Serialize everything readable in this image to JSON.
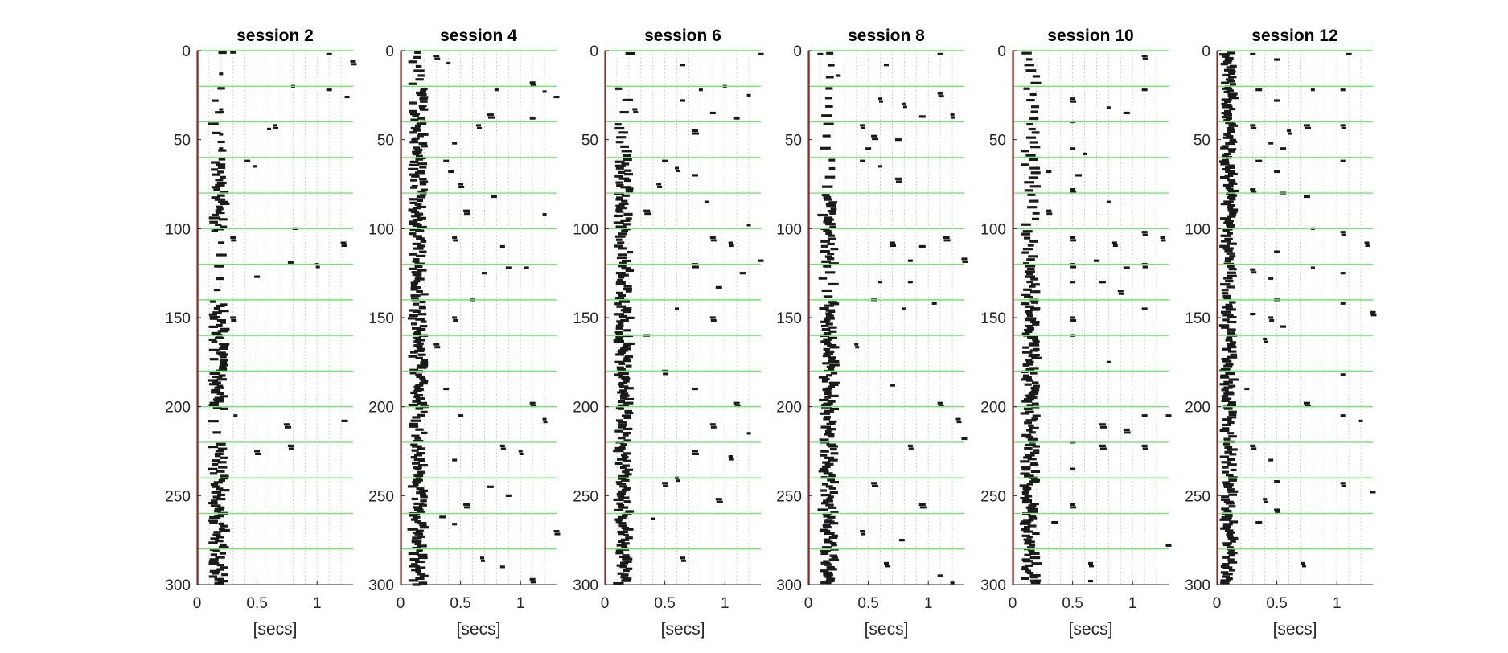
{
  "chart_data": [
    {
      "type": "scatter",
      "title": "session 2",
      "xlabel": "[secs]",
      "ylabel": "",
      "xlim": [
        0,
        1.3
      ],
      "ylim": [
        0,
        300
      ],
      "y_reversed": true,
      "xticks": [
        0,
        0.5,
        1
      ],
      "xtick_labels": [
        "0",
        "0.5",
        "1"
      ],
      "yticks": [
        0,
        50,
        100,
        150,
        200,
        250,
        300
      ],
      "ytick_labels": [
        "0",
        "50",
        "100",
        "150",
        "200",
        "250",
        "300"
      ],
      "grid_x": true,
      "trial_block_lines": [
        20,
        40,
        60,
        80,
        100,
        120,
        140,
        160,
        180,
        200,
        220,
        240,
        260,
        280
      ],
      "marker_color": "#1a1a1a",
      "line_color": "#66ee66",
      "zero_line_color": "#cc2222",
      "fast_cluster": {
        "x": 0.18,
        "spread": 0.05,
        "rows_per_block": [
          1,
          3,
          4,
          14,
          16,
          3,
          3,
          17,
          17,
          19,
          3,
          16,
          17,
          17,
          18
        ]
      },
      "scattered": [
        [
          0.3,
          1
        ],
        [
          1.1,
          2
        ],
        [
          1.3,
          6
        ],
        [
          0.2,
          13
        ],
        [
          0.8,
          20
        ],
        [
          1.1,
          22
        ],
        [
          1.25,
          26
        ],
        [
          0.2,
          33
        ],
        [
          0.65,
          42
        ],
        [
          0.6,
          44
        ],
        [
          0.2,
          47
        ],
        [
          0.2,
          55
        ],
        [
          0.42,
          62
        ],
        [
          0.48,
          65
        ],
        [
          0.82,
          100
        ],
        [
          0.3,
          105
        ],
        [
          1.22,
          108
        ],
        [
          0.78,
          119
        ],
        [
          1.0,
          120
        ],
        [
          0.5,
          127
        ],
        [
          0.3,
          150
        ],
        [
          0.32,
          205
        ],
        [
          0.75,
          210
        ],
        [
          0.78,
          222
        ],
        [
          1.23,
          208
        ],
        [
          0.5,
          225
        ]
      ]
    },
    {
      "type": "scatter",
      "title": "session 4",
      "xlabel": "[secs]",
      "ylabel": "",
      "xlim": [
        0,
        1.3
      ],
      "ylim": [
        0,
        300
      ],
      "y_reversed": true,
      "xticks": [
        0,
        0.5,
        1
      ],
      "xtick_labels": [
        "0",
        "0.5",
        "1"
      ],
      "yticks": [
        0,
        50,
        100,
        150,
        200,
        250,
        300
      ],
      "ytick_labels": [
        "0",
        "50",
        "100",
        "150",
        "200",
        "250",
        "300"
      ],
      "grid_x": true,
      "trial_block_lines": [
        20,
        40,
        60,
        80,
        100,
        120,
        140,
        160,
        180,
        200,
        220,
        240,
        260,
        280
      ],
      "marker_color": "#1a1a1a",
      "line_color": "#66ee66",
      "zero_line_color": "#cc2222",
      "fast_cluster": {
        "x": 0.15,
        "spread": 0.05,
        "rows_per_block": [
          8,
          17,
          18,
          19,
          19,
          14,
          17,
          18,
          19,
          18,
          12,
          17,
          17,
          19,
          17
        ]
      },
      "scattered": [
        [
          0.3,
          3
        ],
        [
          0.4,
          7
        ],
        [
          1.1,
          18
        ],
        [
          0.8,
          22
        ],
        [
          1.2,
          23
        ],
        [
          1.3,
          26
        ],
        [
          0.75,
          36
        ],
        [
          1.1,
          38
        ],
        [
          0.65,
          42
        ],
        [
          0.45,
          52
        ],
        [
          0.38,
          62
        ],
        [
          0.42,
          68
        ],
        [
          0.5,
          75
        ],
        [
          0.78,
          82
        ],
        [
          0.55,
          90
        ],
        [
          1.2,
          92
        ],
        [
          0.45,
          105
        ],
        [
          0.85,
          110
        ],
        [
          0.9,
          122
        ],
        [
          0.7,
          125
        ],
        [
          1.05,
          122
        ],
        [
          0.6,
          140
        ],
        [
          0.45,
          150
        ],
        [
          0.3,
          165
        ],
        [
          1.1,
          198
        ],
        [
          0.5,
          205
        ],
        [
          1.2,
          207
        ],
        [
          0.85,
          222
        ],
        [
          1.0,
          225
        ],
        [
          0.45,
          230
        ],
        [
          0.75,
          245
        ],
        [
          0.9,
          250
        ],
        [
          0.35,
          262
        ],
        [
          0.45,
          266
        ],
        [
          0.68,
          285
        ],
        [
          0.85,
          290
        ],
        [
          1.1,
          297
        ],
        [
          1.3,
          270
        ],
        [
          0.55,
          255
        ],
        [
          0.38,
          190
        ]
      ]
    },
    {
      "type": "scatter",
      "title": "session 6",
      "xlabel": "[secs]",
      "ylabel": "",
      "xlim": [
        0,
        1.3
      ],
      "ylim": [
        0,
        300
      ],
      "y_reversed": true,
      "xticks": [
        0,
        0.5,
        1
      ],
      "xtick_labels": [
        "0",
        "0.5",
        "1"
      ],
      "yticks": [
        0,
        50,
        100,
        150,
        200,
        250,
        300
      ],
      "ytick_labels": [
        "0",
        "50",
        "100",
        "150",
        "200",
        "250",
        "300"
      ],
      "grid_x": true,
      "trial_block_lines": [
        20,
        40,
        60,
        80,
        100,
        120,
        140,
        160,
        180,
        200,
        220,
        240,
        260,
        280
      ],
      "marker_color": "#1a1a1a",
      "line_color": "#66ee66",
      "zero_line_color": "#cc2222",
      "fast_cluster": {
        "x": 0.16,
        "spread": 0.05,
        "rows_per_block": [
          1,
          3,
          8,
          17,
          17,
          12,
          16,
          18,
          19,
          19,
          16,
          17,
          18,
          18,
          18
        ]
      },
      "scattered": [
        [
          0.65,
          8
        ],
        [
          1.3,
          2
        ],
        [
          0.8,
          22
        ],
        [
          1.0,
          20
        ],
        [
          1.2,
          25
        ],
        [
          0.65,
          28
        ],
        [
          0.25,
          33
        ],
        [
          0.9,
          35
        ],
        [
          1.1,
          38
        ],
        [
          0.75,
          45
        ],
        [
          0.5,
          62
        ],
        [
          0.6,
          66
        ],
        [
          0.75,
          70
        ],
        [
          0.45,
          75
        ],
        [
          0.85,
          85
        ],
        [
          0.35,
          90
        ],
        [
          1.2,
          98
        ],
        [
          0.9,
          105
        ],
        [
          1.05,
          108
        ],
        [
          0.75,
          120
        ],
        [
          1.3,
          118
        ],
        [
          1.15,
          125
        ],
        [
          0.95,
          133
        ],
        [
          0.6,
          145
        ],
        [
          0.9,
          150
        ],
        [
          0.35,
          160
        ],
        [
          0.5,
          180
        ],
        [
          0.75,
          190
        ],
        [
          1.1,
          198
        ],
        [
          0.9,
          210
        ],
        [
          1.2,
          215
        ],
        [
          0.75,
          225
        ],
        [
          1.05,
          228
        ],
        [
          0.6,
          240
        ],
        [
          0.95,
          252
        ],
        [
          0.4,
          263
        ],
        [
          0.65,
          285
        ],
        [
          0.5,
          243
        ]
      ]
    },
    {
      "type": "scatter",
      "title": "session 8",
      "xlabel": "[secs]",
      "ylabel": "",
      "xlim": [
        0,
        1.3
      ],
      "ylim": [
        0,
        300
      ],
      "y_reversed": true,
      "xticks": [
        0,
        0.5,
        1
      ],
      "xtick_labels": [
        "0",
        "0.5",
        "1"
      ],
      "yticks": [
        0,
        50,
        100,
        150,
        200,
        250,
        300
      ],
      "ytick_labels": [
        "0",
        "50",
        "100",
        "150",
        "200",
        "250",
        "300"
      ],
      "grid_x": true,
      "trial_block_lines": [
        20,
        40,
        60,
        80,
        100,
        120,
        140,
        160,
        180,
        200,
        220,
        240,
        260,
        280
      ],
      "marker_color": "#1a1a1a",
      "line_color": "#66ee66",
      "zero_line_color": "#cc2222",
      "fast_cluster": {
        "x": 0.17,
        "spread": 0.05,
        "rows_per_block": [
          3,
          4,
          3,
          4,
          16,
          14,
          6,
          18,
          18,
          19,
          14,
          16,
          17,
          18,
          18
        ]
      },
      "scattered": [
        [
          0.1,
          2
        ],
        [
          0.65,
          8
        ],
        [
          1.1,
          2
        ],
        [
          0.25,
          14
        ],
        [
          0.6,
          27
        ],
        [
          0.8,
          30
        ],
        [
          1.1,
          24
        ],
        [
          1.2,
          36
        ],
        [
          0.95,
          37
        ],
        [
          0.45,
          42
        ],
        [
          0.55,
          48
        ],
        [
          0.75,
          50
        ],
        [
          0.5,
          55
        ],
        [
          0.45,
          62
        ],
        [
          0.6,
          65
        ],
        [
          0.75,
          72
        ],
        [
          0.95,
          110
        ],
        [
          0.7,
          108
        ],
        [
          1.15,
          105
        ],
        [
          0.85,
          118
        ],
        [
          1.3,
          117
        ],
        [
          0.6,
          130
        ],
        [
          0.85,
          130
        ],
        [
          0.55,
          140
        ],
        [
          0.8,
          145
        ],
        [
          1.05,
          142
        ],
        [
          0.4,
          165
        ],
        [
          0.7,
          188
        ],
        [
          1.1,
          198
        ],
        [
          1.25,
          207
        ],
        [
          0.85,
          222
        ],
        [
          1.3,
          218
        ],
        [
          0.55,
          243
        ],
        [
          0.95,
          255
        ],
        [
          0.45,
          270
        ],
        [
          0.78,
          275
        ],
        [
          0.65,
          288
        ],
        [
          1.1,
          295
        ],
        [
          1.2,
          299
        ]
      ]
    },
    {
      "type": "scatter",
      "title": "session 10",
      "xlabel": "[secs]",
      "ylabel": "",
      "xlim": [
        0,
        1.3
      ],
      "ylim": [
        0,
        300
      ],
      "y_reversed": true,
      "xticks": [
        0,
        0.5,
        1
      ],
      "xtick_labels": [
        "0",
        "0.5",
        "1"
      ],
      "yticks": [
        0,
        50,
        100,
        150,
        200,
        250,
        300
      ],
      "ytick_labels": [
        "0",
        "50",
        "100",
        "150",
        "200",
        "250",
        "300"
      ],
      "grid_x": true,
      "trial_block_lines": [
        20,
        40,
        60,
        80,
        100,
        120,
        140,
        160,
        180,
        200,
        220,
        240,
        260,
        280
      ],
      "marker_color": "#1a1a1a",
      "line_color": "#66ee66",
      "zero_line_color": "#cc2222",
      "fast_cluster": {
        "x": 0.15,
        "spread": 0.05,
        "rows_per_block": [
          6,
          6,
          8,
          8,
          6,
          10,
          14,
          18,
          19,
          19,
          15,
          17,
          18,
          18,
          18
        ]
      },
      "scattered": [
        [
          1.1,
          3
        ],
        [
          1.1,
          22
        ],
        [
          0.5,
          27
        ],
        [
          0.8,
          32
        ],
        [
          0.5,
          40
        ],
        [
          0.95,
          35
        ],
        [
          0.5,
          55
        ],
        [
          0.6,
          58
        ],
        [
          0.3,
          68
        ],
        [
          0.55,
          70
        ],
        [
          0.5,
          78
        ],
        [
          0.8,
          85
        ],
        [
          0.3,
          90
        ],
        [
          0.5,
          105
        ],
        [
          0.85,
          108
        ],
        [
          1.1,
          102
        ],
        [
          1.25,
          105
        ],
        [
          0.5,
          120
        ],
        [
          0.7,
          118
        ],
        [
          0.95,
          122
        ],
        [
          1.1,
          120
        ],
        [
          0.5,
          130
        ],
        [
          0.75,
          130
        ],
        [
          0.9,
          135
        ],
        [
          0.5,
          150
        ],
        [
          1.1,
          145
        ],
        [
          0.5,
          160
        ],
        [
          0.8,
          175
        ],
        [
          1.1,
          205
        ],
        [
          1.3,
          205
        ],
        [
          0.75,
          210
        ],
        [
          0.95,
          213
        ],
        [
          0.5,
          220
        ],
        [
          0.75,
          222
        ],
        [
          1.1,
          222
        ],
        [
          0.5,
          235
        ],
        [
          0.5,
          255
        ],
        [
          0.35,
          265
        ],
        [
          0.65,
          288
        ],
        [
          1.3,
          278
        ],
        [
          0.65,
          298
        ]
      ]
    },
    {
      "type": "scatter",
      "title": "session 12",
      "xlabel": "[secs]",
      "ylabel": "",
      "xlim": [
        0,
        1.3
      ],
      "ylim": [
        0,
        300
      ],
      "y_reversed": true,
      "xticks": [
        0,
        0.5,
        1
      ],
      "xtick_labels": [
        "0",
        "0.5",
        "1"
      ],
      "yticks": [
        0,
        50,
        100,
        150,
        200,
        250,
        300
      ],
      "ytick_labels": [
        "0",
        "50",
        "100",
        "150",
        "200",
        "250",
        "300"
      ],
      "grid_x": true,
      "trial_block_lines": [
        20,
        40,
        60,
        80,
        100,
        120,
        140,
        160,
        180,
        200,
        220,
        240,
        260,
        280
      ],
      "marker_color": "#1a1a1a",
      "line_color": "#66ee66",
      "zero_line_color": "#cc2222",
      "fast_cluster": {
        "x": 0.1,
        "spread": 0.04,
        "rows_per_block": [
          19,
          19,
          18,
          18,
          17,
          14,
          12,
          14,
          15,
          17,
          13,
          14,
          15,
          17,
          17
        ]
      },
      "scattered": [
        [
          0.3,
          2
        ],
        [
          0.5,
          5
        ],
        [
          1.1,
          2
        ],
        [
          0.35,
          22
        ],
        [
          0.5,
          28
        ],
        [
          0.8,
          22
        ],
        [
          1.05,
          22
        ],
        [
          0.3,
          42
        ],
        [
          0.6,
          45
        ],
        [
          0.75,
          42
        ],
        [
          1.05,
          42
        ],
        [
          0.45,
          52
        ],
        [
          0.55,
          55
        ],
        [
          0.35,
          62
        ],
        [
          0.5,
          68
        ],
        [
          1.05,
          62
        ],
        [
          0.3,
          78
        ],
        [
          0.55,
          80
        ],
        [
          0.75,
          82
        ],
        [
          0.8,
          100
        ],
        [
          1.05,
          102
        ],
        [
          1.25,
          108
        ],
        [
          0.5,
          113
        ],
        [
          0.3,
          123
        ],
        [
          0.45,
          128
        ],
        [
          0.8,
          122
        ],
        [
          1.05,
          125
        ],
        [
          0.5,
          140
        ],
        [
          0.3,
          148
        ],
        [
          0.45,
          150
        ],
        [
          0.55,
          155
        ],
        [
          1.05,
          142
        ],
        [
          1.3,
          147
        ],
        [
          0.4,
          162
        ],
        [
          0.25,
          190
        ],
        [
          0.75,
          198
        ],
        [
          1.05,
          182
        ],
        [
          1.05,
          205
        ],
        [
          1.2,
          208
        ],
        [
          0.3,
          222
        ],
        [
          0.45,
          230
        ],
        [
          0.5,
          242
        ],
        [
          1.05,
          243
        ],
        [
          1.3,
          248
        ],
        [
          0.4,
          252
        ],
        [
          0.5,
          258
        ],
        [
          0.35,
          265
        ],
        [
          0.72,
          288
        ]
      ]
    }
  ]
}
